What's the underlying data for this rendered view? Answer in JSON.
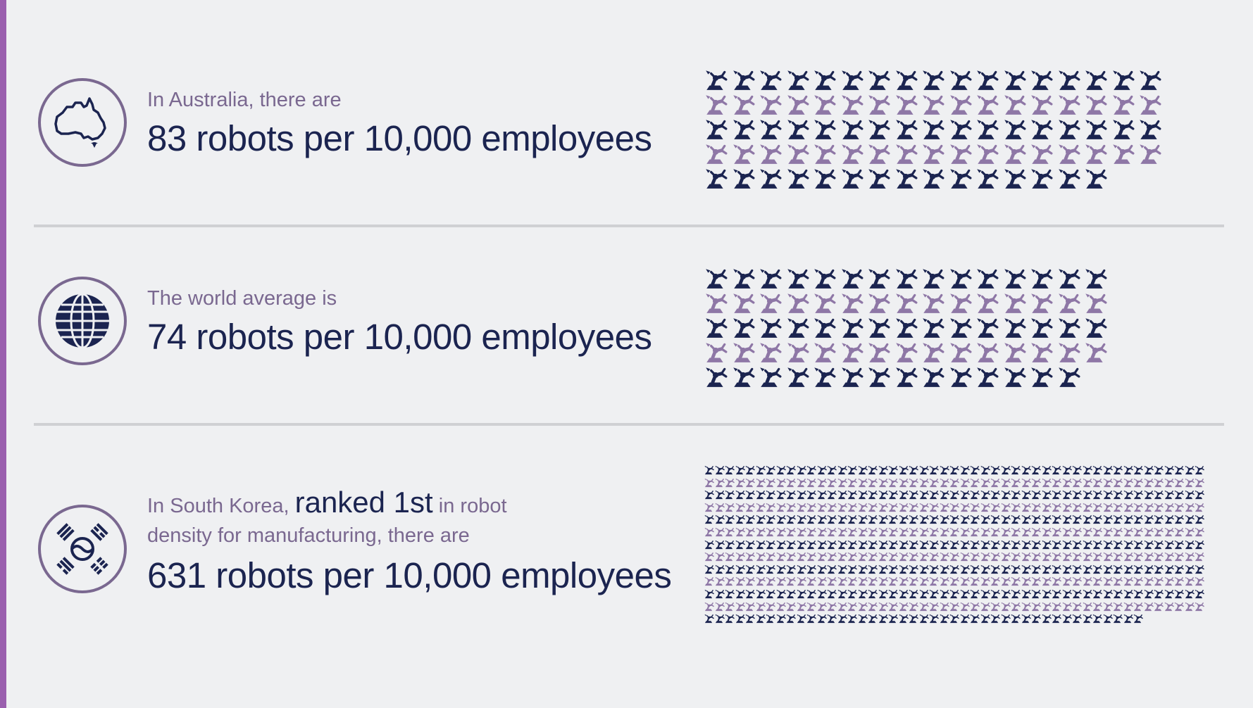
{
  "colors": {
    "navy": "#1b2450",
    "lavender": "#7a6890",
    "robot_light": "#8e77a6",
    "accent": "#9a5fae",
    "divider": "#cfd0d3",
    "background": "#eff0f2"
  },
  "icons": {
    "robot": "robot-arm-icon"
  },
  "rows": [
    {
      "id": "australia",
      "icon": "australia-map-icon",
      "intro": "In Australia, there are",
      "headline": "83 robots per 10,000 employees",
      "robots": 83
    },
    {
      "id": "world",
      "icon": "globe-icon",
      "intro": "The world average is",
      "headline": "74 robots per 10,000 employees",
      "robots": 74
    },
    {
      "id": "south-korea",
      "icon": "korea-flag-icon",
      "intro_prefix": "In South Korea,",
      "intro_emphasis": "ranked 1st",
      "intro_suffix": "in robot",
      "intro_line2": "density for manufacturing, there are",
      "headline": "631 robots per 10,000 employees",
      "robots": 631
    }
  ]
}
